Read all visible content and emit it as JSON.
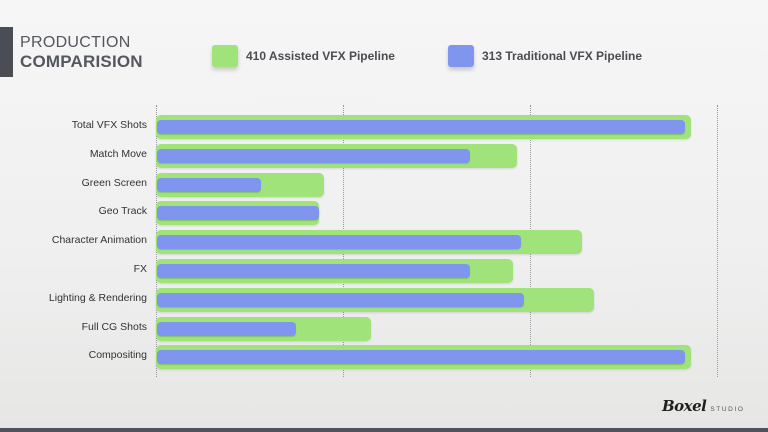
{
  "header": {
    "title_line1": "PRODUCTION",
    "title_line2": "COMPARISION"
  },
  "legend": [
    {
      "label": "410 Assisted VFX Pipeline",
      "color": "#9fe37a"
    },
    {
      "label": "313 Traditional VFX Pipeline",
      "color": "#7f95ee"
    }
  ],
  "branding": {
    "logo_script": "Boxel",
    "logo_suffix": "STUDIO"
  },
  "chart_data": {
    "type": "bar",
    "orientation": "horizontal",
    "title": "PRODUCTION COMPARISION",
    "xlabel": "",
    "ylabel": "",
    "categories": [
      "Total VFX Shots",
      "Match Move",
      "Green Screen",
      "Geo Track",
      "Character Animation",
      "FX",
      "Lighting & Rendering",
      "Full CG Shots",
      "Compositing"
    ],
    "series": [
      {
        "name": "410 Assisted VFX Pipeline",
        "color": "#9fe37a",
        "values": [
          286,
          193,
          90,
          87,
          228,
          191,
          234,
          115,
          286
        ]
      },
      {
        "name": "313 Traditional VFX Pipeline",
        "color": "#7f95ee",
        "values": [
          283,
          168,
          56,
          87,
          195,
          168,
          197,
          75,
          283
        ]
      }
    ],
    "xlim": [
      0,
      300
    ],
    "gridlines": [
      0,
      100,
      200,
      300
    ],
    "grid": true,
    "tick_labels_shown": false,
    "legend_position": "top",
    "overlapping_bars": true
  }
}
